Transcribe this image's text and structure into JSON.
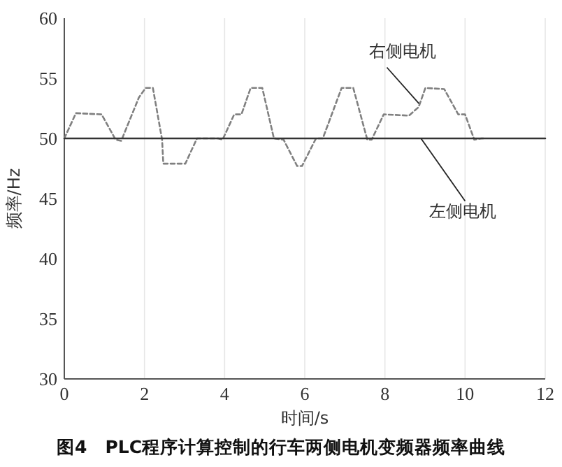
{
  "chart_data": {
    "type": "line",
    "title": "图4　PLC程序计算控制的行车两侧电机变频器频率曲线",
    "xlabel": "时间/s",
    "ylabel": "频率/Hz",
    "xlim": [
      0,
      12
    ],
    "xticks": [
      0,
      2,
      4,
      6,
      8,
      10,
      12
    ],
    "ylim": [
      30,
      60
    ],
    "yticks": [
      30,
      35,
      40,
      45,
      50,
      55,
      60
    ],
    "grid": "x",
    "marker": "none",
    "series": [
      {
        "name": "右侧电机",
        "color": "#808080",
        "line_style": "dashed",
        "x": [
          0,
          0.29,
          0.93,
          1.28,
          1.42,
          1.86,
          2.03,
          2.21,
          2.44,
          2.47,
          2.79,
          3.02,
          3.31,
          3.49,
          3.84,
          3.95,
          4.24,
          4.42,
          4.65,
          4.94,
          5.23,
          5.47,
          5.81,
          5.93,
          6.28,
          6.45,
          6.92,
          7.21,
          7.56,
          7.67,
          7.97,
          8.6,
          8.84,
          9.01,
          9.48,
          9.83,
          10.0,
          10.23,
          10.41,
          10.5
        ],
        "values": [
          50,
          52.1,
          52,
          49.9,
          49.8,
          53.4,
          54.2,
          54.2,
          49.9,
          47.9,
          47.9,
          47.9,
          50,
          50,
          50,
          49.9,
          52,
          52,
          54.2,
          54.2,
          50,
          49.9,
          47.7,
          47.7,
          50,
          50,
          54.2,
          54.2,
          49.9,
          49.9,
          52,
          51.9,
          52.6,
          54.2,
          54.1,
          52,
          52,
          49.9,
          50,
          50
        ]
      },
      {
        "name": "左侧电机",
        "color": "#333333",
        "line_style": "solid",
        "x": [
          0,
          12
        ],
        "values": [
          50,
          50
        ]
      }
    ]
  }
}
